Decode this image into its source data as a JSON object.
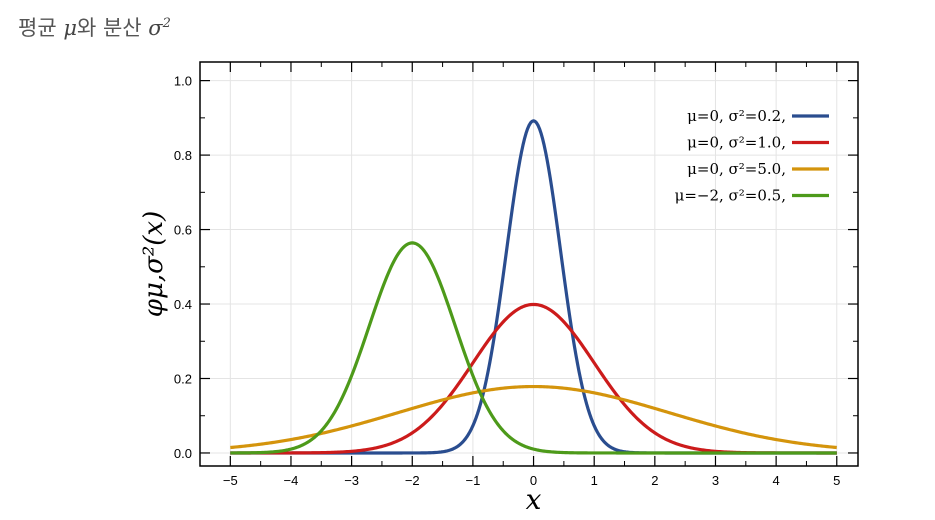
{
  "header": {
    "prefix": "평균 ",
    "mu": "μ",
    "middle": "와 분산 ",
    "sigma": "σ",
    "exp": "2"
  },
  "chart_data": {
    "type": "line",
    "xlabel": "x",
    "ylabel": "φμ,σ²(x)",
    "xlim": [
      -5.5,
      5.35
    ],
    "ylim": [
      -0.035,
      1.05
    ],
    "xticks": [
      -5,
      -4,
      -3,
      -2,
      -1,
      0,
      1,
      2,
      3,
      4,
      5
    ],
    "xtick_labels": [
      "−5",
      "−4",
      "−3",
      "−2",
      "−1",
      "0",
      "1",
      "2",
      "3",
      "4",
      "5"
    ],
    "yticks": [
      0.0,
      0.2,
      0.4,
      0.6,
      0.8,
      1.0
    ],
    "ytick_labels": [
      "0.0",
      "0.2",
      "0.4",
      "0.6",
      "0.8",
      "1.0"
    ],
    "grid": true,
    "legend_position": "top-right",
    "series": [
      {
        "name": "μ=0,   σ²=0.2,",
        "mu": 0,
        "variance": 0.2,
        "color": "#2a4d8f",
        "x": [
          -5,
          -4,
          -3,
          -2,
          -1.5,
          -1,
          -0.5,
          0,
          0.5,
          1,
          1.5,
          2,
          3,
          4,
          5
        ],
        "y": [
          0.0,
          0.0,
          0.0,
          0.0,
          0.0033,
          0.0732,
          0.4772,
          0.8921,
          0.4772,
          0.0732,
          0.0033,
          0.0,
          0.0,
          0.0,
          0.0
        ]
      },
      {
        "name": "μ=0,   σ²=1.0,",
        "mu": 0,
        "variance": 1.0,
        "color": "#cc1b1b",
        "x": [
          -5,
          -4,
          -3,
          -2,
          -1.5,
          -1,
          -0.5,
          0,
          0.5,
          1,
          1.5,
          2,
          3,
          4,
          5
        ],
        "y": [
          0.0,
          0.0001,
          0.0044,
          0.054,
          0.1295,
          0.242,
          0.3521,
          0.3989,
          0.3521,
          0.242,
          0.1295,
          0.054,
          0.0044,
          0.0001,
          0.0
        ]
      },
      {
        "name": "μ=0,   σ²=5.0,",
        "mu": 0,
        "variance": 5.0,
        "color": "#d4940c",
        "x": [
          -5,
          -4,
          -3,
          -2,
          -1,
          0,
          1,
          2,
          3,
          4,
          5
        ],
        "y": [
          0.0146,
          0.0364,
          0.0729,
          0.1196,
          0.1614,
          0.1784,
          0.1614,
          0.1196,
          0.0729,
          0.0364,
          0.0146
        ]
      },
      {
        "name": "μ=−2, σ²=0.5,",
        "mu": -2,
        "variance": 0.5,
        "color": "#4d9a1a",
        "x": [
          -5,
          -4,
          -3,
          -2.5,
          -2,
          -1.5,
          -1,
          0,
          1,
          2,
          3,
          4,
          5
        ],
        "y": [
          0.0,
          0.0103,
          0.2076,
          0.4839,
          0.5642,
          0.4839,
          0.2076,
          0.0103,
          0.0,
          0.0,
          0.0,
          0.0,
          0.0
        ]
      }
    ]
  }
}
